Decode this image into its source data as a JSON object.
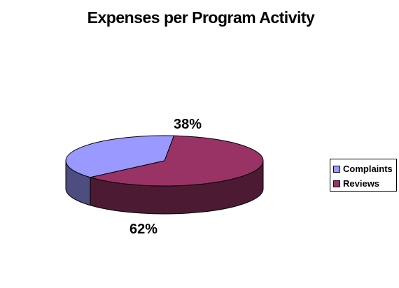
{
  "chart_data": {
    "type": "pie",
    "title": "Expenses per Program Activity",
    "categories": [
      "Complaints",
      "Reviews"
    ],
    "values": [
      38,
      62
    ],
    "value_labels": [
      "38%",
      "62%"
    ],
    "colors": [
      "#9999ff",
      "#993366"
    ],
    "side_colors": [
      "#4d4d80",
      "#4d1a33"
    ],
    "legend_position": "right",
    "style": "3d"
  }
}
